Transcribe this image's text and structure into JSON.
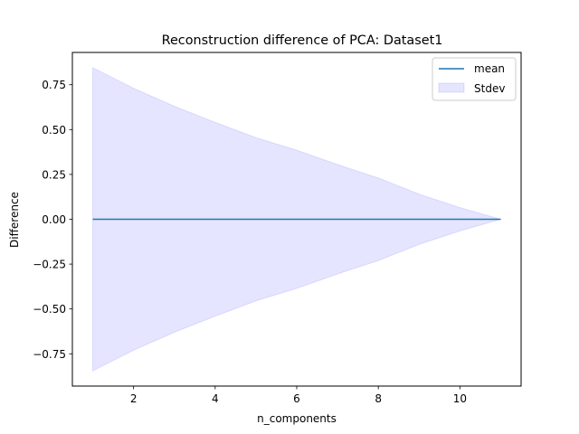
{
  "chart_data": {
    "type": "line",
    "title": "Reconstruction difference of PCA: Dataset1",
    "xlabel": "n_components",
    "ylabel": "Difference",
    "xlim": [
      0.5,
      11.5
    ],
    "ylim": [
      -0.93,
      0.93
    ],
    "xticks": [
      2,
      4,
      6,
      8,
      10
    ],
    "xtick_labels": [
      "2",
      "4",
      "6",
      "8",
      "10"
    ],
    "yticks": [
      -0.75,
      -0.5,
      -0.25,
      0.0,
      0.25,
      0.5,
      0.75
    ],
    "ytick_labels": [
      "−0.75",
      "−0.50",
      "−0.25",
      "0.00",
      "0.25",
      "0.50",
      "0.75"
    ],
    "grid": false,
    "legend_position": "upper right",
    "x": [
      1,
      2,
      3,
      4,
      5,
      6,
      7,
      8,
      9,
      10,
      11
    ],
    "series": [
      {
        "name": "mean",
        "kind": "line",
        "color": "#1f77b4",
        "values": [
          0,
          0,
          0,
          0,
          0,
          0,
          0,
          0,
          0,
          0,
          0
        ]
      },
      {
        "name": "Stdev",
        "kind": "band",
        "color": "#0000ff",
        "opacity": 0.1,
        "upper": [
          0.845,
          0.73,
          0.63,
          0.54,
          0.455,
          0.385,
          0.305,
          0.23,
          0.14,
          0.065,
          0.0
        ],
        "lower": [
          -0.845,
          -0.73,
          -0.63,
          -0.54,
          -0.455,
          -0.385,
          -0.305,
          -0.23,
          -0.14,
          -0.065,
          0.0
        ]
      }
    ]
  }
}
